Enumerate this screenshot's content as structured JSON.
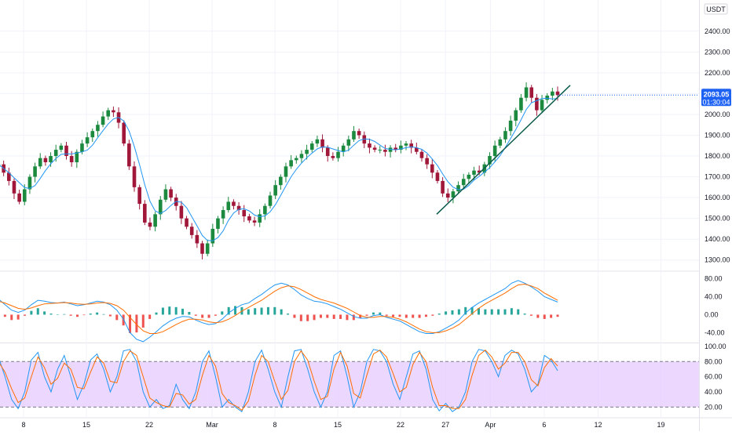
{
  "header": {
    "currency": "USDT"
  },
  "current_price": {
    "value": "2093.05",
    "countdown": "01:30:04",
    "price": 2093.05
  },
  "colors": {
    "up": "#26a69a",
    "down": "#ef5350",
    "candle_up": "#1b8a3f",
    "candle_down": "#a0173a",
    "ma_line": "#2196f3",
    "trendline": "#0a5a4a",
    "macd_line": "#2196f3",
    "signal_line": "#ff6d00",
    "hist_pos": "#26a69a",
    "hist_neg": "#ef5350",
    "stoch_k": "#2196f3",
    "stoch_d": "#ff6d00",
    "stoch_band": "#e6c9ff",
    "grid": "#f0f3fa",
    "price_tag": "#1e62f4"
  },
  "x_axis": {
    "ticks": [
      {
        "label": "8",
        "day": 7
      },
      {
        "label": "15",
        "day": 14
      },
      {
        "label": "22",
        "day": 21
      },
      {
        "label": "Mar",
        "day": 28
      },
      {
        "label": "8",
        "day": 35
      },
      {
        "label": "15",
        "day": 42
      },
      {
        "label": "22",
        "day": 49
      },
      {
        "label": "27",
        "day": 54
      },
      {
        "label": "Apr",
        "day": 59
      },
      {
        "label": "6",
        "day": 65
      },
      {
        "label": "12",
        "day": 71
      },
      {
        "label": "19",
        "day": 78
      }
    ]
  },
  "chart_data": [
    {
      "type": "candlestick",
      "title": "",
      "ylim": [
        1250,
        2550
      ],
      "y_ticks": [
        "2400.00",
        "2300.00",
        "2200.00",
        "2100.00",
        "2000.00",
        "1900.00",
        "1800.00",
        "1700.00",
        "1600.00",
        "1500.00",
        "1400.00",
        "1300.00"
      ],
      "y_tick_values": [
        2400,
        2300,
        2200,
        2100,
        2000,
        1900,
        1800,
        1700,
        1600,
        1500,
        1400,
        1300
      ],
      "closes": [
        1760,
        1720,
        1680,
        1620,
        1580,
        1640,
        1700,
        1750,
        1790,
        1770,
        1800,
        1830,
        1850,
        1800,
        1770,
        1820,
        1860,
        1890,
        1920,
        1950,
        1990,
        2020,
        2010,
        1960,
        1860,
        1750,
        1650,
        1570,
        1480,
        1460,
        1520,
        1590,
        1640,
        1600,
        1560,
        1500,
        1460,
        1420,
        1380,
        1330,
        1380,
        1450,
        1500,
        1540,
        1580,
        1560,
        1540,
        1510,
        1490,
        1480,
        1520,
        1560,
        1610,
        1660,
        1700,
        1750,
        1780,
        1790,
        1810,
        1830,
        1860,
        1880,
        1840,
        1800,
        1790,
        1820,
        1850,
        1880,
        1920,
        1900,
        1860,
        1840,
        1830,
        1830,
        1820,
        1840,
        1830,
        1850,
        1860,
        1840,
        1820,
        1790,
        1760,
        1720,
        1680,
        1620,
        1600,
        1630,
        1660,
        1690,
        1710,
        1730,
        1720,
        1760,
        1800,
        1850,
        1880,
        1920,
        1970,
        2020,
        2080,
        2130,
        2080,
        2020,
        2070,
        2090,
        2110,
        2093
      ],
      "trendline": {
        "from": [
          1.0,
          1520
        ],
        "to": [
          4.3,
          2140
        ]
      }
    },
    {
      "type": "line",
      "title": "",
      "ylim": [
        -62,
        95
      ],
      "y_ticks": [
        "80.00",
        "40.00",
        "0.00",
        "-40.00"
      ],
      "y_tick_values": [
        80,
        40,
        0,
        -40
      ],
      "series": [
        {
          "role": "macd",
          "values": [
            35,
            22,
            10,
            5,
            10,
            22,
            32,
            30,
            27,
            26,
            28,
            24,
            20,
            22,
            26,
            30,
            28,
            22,
            10,
            -10,
            -40,
            -55,
            -60,
            -50,
            -38,
            -25,
            -15,
            -8,
            -4,
            -5,
            -12,
            -18,
            -22,
            -20,
            -10,
            4,
            14,
            22,
            26,
            36,
            45,
            56,
            66,
            70,
            66,
            56,
            44,
            36,
            30,
            28,
            24,
            18,
            12,
            4,
            -4,
            -8,
            -8,
            -2,
            0,
            -6,
            -10,
            -14,
            -22,
            -30,
            -38,
            -42,
            -42,
            -38,
            -30,
            -22,
            -12,
            4,
            16,
            26,
            34,
            42,
            50,
            58,
            70,
            76,
            70,
            62,
            52,
            40,
            34,
            28
          ]
        },
        {
          "role": "signal",
          "values": [
            30,
            26,
            20,
            14,
            12,
            15,
            20,
            24,
            25,
            26,
            27,
            26,
            24,
            23,
            24,
            26,
            27,
            25,
            20,
            10,
            -6,
            -22,
            -36,
            -42,
            -42,
            -38,
            -30,
            -22,
            -15,
            -10,
            -10,
            -12,
            -16,
            -18,
            -16,
            -10,
            -2,
            8,
            16,
            24,
            32,
            42,
            52,
            60,
            64,
            62,
            56,
            48,
            40,
            34,
            30,
            26,
            20,
            14,
            6,
            -2,
            -6,
            -6,
            -4,
            -4,
            -6,
            -10,
            -16,
            -24,
            -32,
            -38,
            -40,
            -40,
            -36,
            -30,
            -22,
            -10,
            2,
            14,
            24,
            32,
            40,
            48,
            58,
            66,
            68,
            64,
            58,
            48,
            40,
            32
          ]
        }
      ]
    },
    {
      "type": "line",
      "title": "",
      "ylim": [
        7,
        104
      ],
      "y_ticks": [
        "100.00",
        "80.00",
        "60.00",
        "40.00",
        "20.00"
      ],
      "y_tick_values": [
        100,
        80,
        60,
        40,
        20
      ],
      "band": [
        20,
        80
      ],
      "series": [
        {
          "role": "k",
          "values": [
            86,
            60,
            30,
            18,
            40,
            82,
            92,
            60,
            40,
            70,
            88,
            60,
            30,
            50,
            82,
            90,
            70,
            40,
            60,
            94,
            96,
            80,
            40,
            20,
            30,
            18,
            22,
            50,
            30,
            18,
            40,
            80,
            94,
            60,
            20,
            30,
            20,
            14,
            40,
            80,
            95,
            70,
            40,
            20,
            60,
            94,
            96,
            70,
            40,
            20,
            40,
            88,
            94,
            60,
            20,
            40,
            80,
            96,
            94,
            80,
            50,
            30,
            60,
            90,
            94,
            70,
            30,
            15,
            25,
            14,
            20,
            40,
            80,
            96,
            94,
            80,
            60,
            88,
            95,
            90,
            70,
            40,
            50,
            88,
            82,
            68
          ]
        },
        {
          "role": "d",
          "values": [
            80,
            66,
            44,
            26,
            32,
            60,
            86,
            72,
            50,
            58,
            78,
            70,
            46,
            44,
            66,
            86,
            78,
            54,
            52,
            80,
            94,
            88,
            60,
            32,
            26,
            22,
            20,
            38,
            36,
            24,
            30,
            62,
            88,
            74,
            38,
            26,
            22,
            16,
            28,
            62,
            88,
            80,
            54,
            30,
            42,
            80,
            94,
            82,
            54,
            30,
            34,
            70,
            92,
            74,
            38,
            32,
            62,
            90,
            95,
            86,
            64,
            40,
            46,
            76,
            92,
            80,
            46,
            22,
            22,
            18,
            18,
            30,
            62,
            88,
            95,
            86,
            70,
            78,
            92,
            92,
            80,
            56,
            48,
            72,
            84,
            74
          ]
        }
      ]
    }
  ]
}
